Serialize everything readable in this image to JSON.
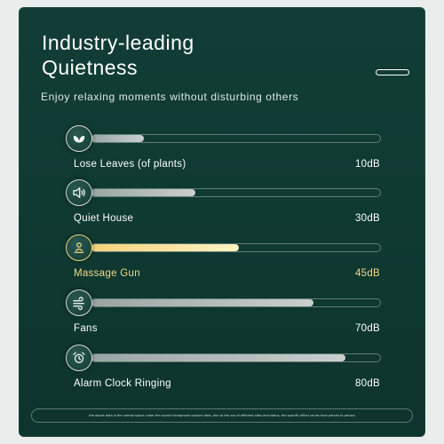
{
  "header": {
    "title_line1": "Industry-leading",
    "title_line2": "Quietness",
    "subtitle": "Enjoy relaxing moments without disturbing others"
  },
  "items": [
    {
      "label": "Lose Leaves (of plants)",
      "value": "10dB",
      "level": 0.18,
      "icon": "leaves-icon",
      "highlight": false
    },
    {
      "label": "Quiet House",
      "value": "30dB",
      "level": 0.36,
      "icon": "speaker-icon",
      "highlight": false
    },
    {
      "label": "Massage Gun",
      "value": "45dB",
      "level": 0.51,
      "icon": "person-icon",
      "highlight": true
    },
    {
      "label": "Fans",
      "value": "70dB",
      "level": 0.77,
      "icon": "wind-icon",
      "highlight": false
    },
    {
      "label": "Alarm Clock Ringing",
      "value": "80dB",
      "level": 0.88,
      "icon": "alarm-clock-icon",
      "highlight": false
    }
  ],
  "footnote": "the above data is the normal space under the sound microphone capture data, due to the use of different sites and status, the specific effect varies from person to person",
  "colors": {
    "background": "#0f3a32",
    "highlight": "#f3d98a",
    "track_fill": "#c9cfcc"
  }
}
